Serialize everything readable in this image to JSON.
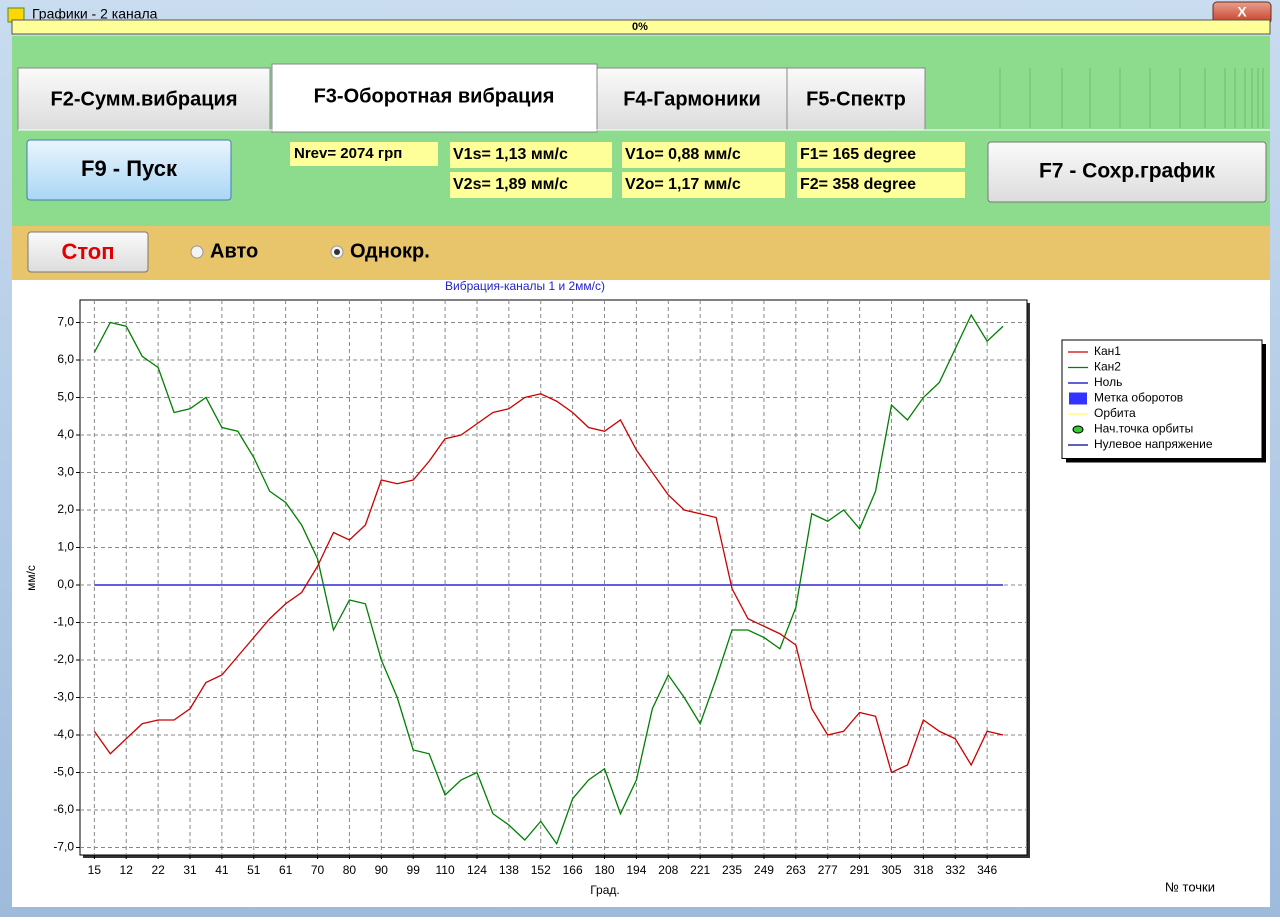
{
  "window": {
    "title": "Графики - 2 канала"
  },
  "progress": {
    "label": "0%"
  },
  "tabs": [
    "F2-Сумм.вибрация",
    "F3-Оборотная вибрация",
    "F4-Гармоники",
    "F5-Спектр"
  ],
  "buttons": {
    "start": "F9 - Пуск",
    "save": "F7 - Сохр.график",
    "stop": "Стоп"
  },
  "readings": [
    "Nrev= 2074 грп",
    "V1s= 1,13 мм/с",
    "V2s= 1,89 мм/с",
    "V1o= 0,88 мм/с",
    "V2o= 1,17 мм/с",
    "F1= 165 degree",
    "F2= 358 degree"
  ],
  "modes": [
    "Авто",
    "Однокр."
  ],
  "chart_data": {
    "type": "line",
    "title": "Вибрация-каналы 1 и 2мм/с)",
    "x_label": "Град.",
    "y_label": "мм/с",
    "annotation": "№ точки",
    "x": [
      0,
      1,
      2,
      3,
      4,
      5,
      6,
      7,
      8,
      9,
      10,
      11,
      12,
      13,
      14,
      15,
      16,
      17,
      18,
      19,
      20,
      21,
      22,
      23,
      24,
      25,
      26,
      27,
      28,
      29,
      30,
      31,
      32,
      33,
      34,
      35,
      36,
      37,
      38,
      39,
      40,
      41,
      42,
      43,
      44,
      45,
      46,
      47,
      48,
      49,
      50,
      51,
      52,
      53,
      54,
      55,
      56,
      57
    ],
    "series": [
      {
        "name": "Кан1",
        "color": "#cc0000",
        "values": [
          -3.9,
          -4.5,
          -4.1,
          -3.7,
          -3.6,
          -3.6,
          -3.3,
          -2.6,
          -2.4,
          -1.9,
          -1.4,
          -0.9,
          -0.5,
          -0.2,
          0.5,
          1.4,
          1.2,
          1.6,
          2.8,
          2.7,
          2.8,
          3.3,
          3.9,
          4.0,
          4.3,
          4.6,
          4.7,
          5.0,
          5.1,
          4.9,
          4.6,
          4.2,
          4.1,
          4.4,
          3.6,
          3.0,
          2.4,
          2.0,
          1.9,
          1.8,
          -0.1,
          -0.9,
          -1.1,
          -1.3,
          -1.6,
          -3.3,
          -4.0,
          -3.9,
          -3.4,
          -3.5,
          -5.0,
          -4.8,
          -3.6,
          -3.9,
          -4.1,
          -4.8,
          -3.9,
          -4.0
        ]
      },
      {
        "name": "Кан2",
        "color": "#008000",
        "values": [
          6.2,
          7.0,
          6.9,
          6.1,
          5.8,
          4.6,
          4.7,
          5.0,
          4.2,
          4.1,
          3.4,
          2.5,
          2.2,
          1.6,
          0.7,
          -1.2,
          -0.4,
          -0.5,
          -2.0,
          -3.0,
          -4.4,
          -4.5,
          -5.6,
          -5.2,
          -5.0,
          -6.1,
          -6.4,
          -6.8,
          -6.3,
          -6.9,
          -5.7,
          -5.2,
          -4.9,
          -6.1,
          -5.2,
          -3.3,
          -2.4,
          -3.0,
          -3.7,
          -2.5,
          -1.2,
          -1.2,
          -1.4,
          -1.7,
          -0.6,
          1.9,
          1.7,
          2.0,
          1.5,
          2.5,
          4.8,
          4.4,
          5.0,
          5.4,
          6.3,
          7.2,
          6.5,
          6.9
        ]
      },
      {
        "name": "Ноль",
        "color": "#0000cc",
        "values": [
          0,
          0,
          0,
          0,
          0,
          0,
          0,
          0,
          0,
          0,
          0,
          0,
          0,
          0,
          0,
          0,
          0,
          0,
          0,
          0,
          0,
          0,
          0,
          0,
          0,
          0,
          0,
          0,
          0,
          0,
          0,
          0,
          0,
          0,
          0,
          0,
          0,
          0,
          0,
          0,
          0,
          0,
          0,
          0,
          0,
          0,
          0,
          0,
          0,
          0,
          0,
          0,
          0,
          0,
          0,
          0,
          0,
          0
        ]
      }
    ],
    "legend_extra": [
      {
        "name": "Метка оборотов",
        "color": "#3333ff",
        "marker": "box"
      },
      {
        "name": "Орбита",
        "color": "#ffff66",
        "marker": "line"
      },
      {
        "name": "Нач.точка орбиты",
        "color": "#33cc33",
        "marker": "dot"
      },
      {
        "name": "Нулевое напряжение",
        "color": "#000099",
        "marker": "line"
      }
    ],
    "xlim": [
      -0.9,
      58.5
    ],
    "ylim": [
      -7.2,
      7.6
    ],
    "xticks": [
      {
        "value": 0,
        "label": "15"
      },
      {
        "value": 2,
        "label": "12"
      },
      {
        "value": 4,
        "label": "22"
      },
      {
        "value": 6,
        "label": "31"
      },
      {
        "value": 8,
        "label": "41"
      },
      {
        "value": 10,
        "label": "51"
      },
      {
        "value": 12,
        "label": "61"
      },
      {
        "value": 14,
        "label": "70"
      },
      {
        "value": 16,
        "label": "80"
      },
      {
        "value": 18,
        "label": "90"
      },
      {
        "value": 20,
        "label": "99"
      },
      {
        "value": 22,
        "label": "110"
      },
      {
        "value": 24,
        "label": "124"
      },
      {
        "value": 26,
        "label": "138"
      },
      {
        "value": 28,
        "label": "152"
      },
      {
        "value": 30,
        "label": "166"
      },
      {
        "value": 32,
        "label": "180"
      },
      {
        "value": 34,
        "label": "194"
      },
      {
        "value": 36,
        "label": "208"
      },
      {
        "value": 38,
        "label": "221"
      },
      {
        "value": 40,
        "label": "235"
      },
      {
        "value": 42,
        "label": "249"
      },
      {
        "value": 44,
        "label": "263"
      },
      {
        "value": 46,
        "label": "277"
      },
      {
        "value": 48,
        "label": "291"
      },
      {
        "value": 50,
        "label": "305"
      },
      {
        "value": 52,
        "label": "318"
      },
      {
        "value": 54,
        "label": "332"
      },
      {
        "value": 56,
        "label": "346"
      }
    ],
    "yticks": [
      {
        "value": 7,
        "label": "7,0"
      },
      {
        "value": 6,
        "label": "6,0"
      },
      {
        "value": 5,
        "label": "5,0"
      },
      {
        "value": 4,
        "label": "4,0"
      },
      {
        "value": 3,
        "label": "3,0"
      },
      {
        "value": 2,
        "label": "2,0"
      },
      {
        "value": 1,
        "label": "1,0"
      },
      {
        "value": 0,
        "label": "0,0"
      },
      {
        "value": -1,
        "label": "-1,0"
      },
      {
        "value": -2,
        "label": "-2,0"
      },
      {
        "value": -3,
        "label": "-3,0"
      },
      {
        "value": -4,
        "label": "-4,0"
      },
      {
        "value": -5,
        "label": "-5,0"
      },
      {
        "value": -6,
        "label": "-6,0"
      },
      {
        "value": -7,
        "label": "-7,0"
      }
    ],
    "grid": true,
    "legend": "upper right"
  }
}
